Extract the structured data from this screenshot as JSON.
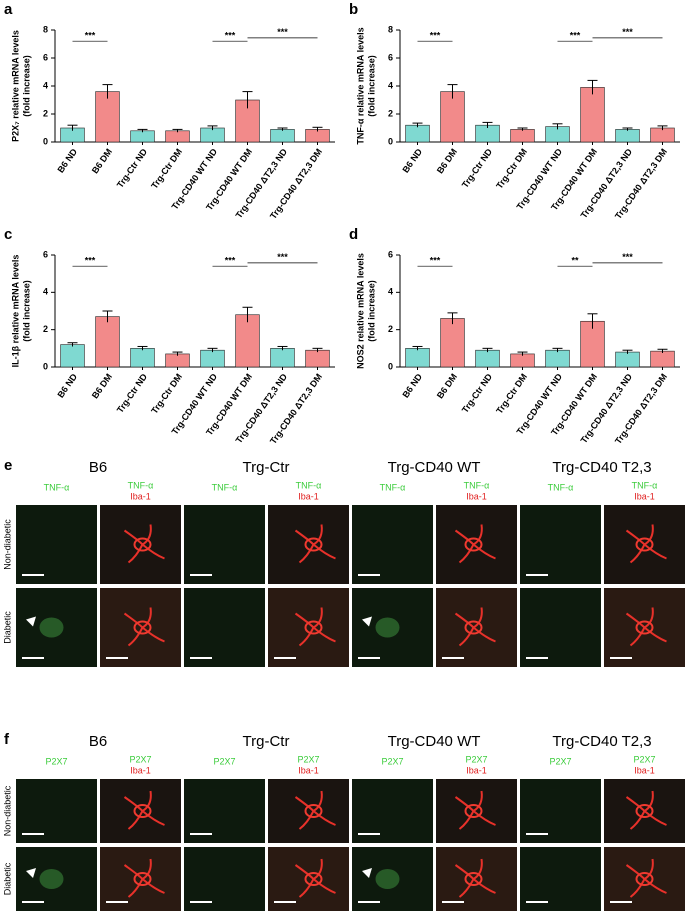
{
  "chart_data": [
    {
      "type": "bar",
      "panel": "a",
      "ylabel": [
        "P2X₇ relative mRNA levels",
        "(fold increase)"
      ],
      "categories": [
        "B6 ND",
        "B6 DM",
        "Trg-Ctr ND",
        "Trg-Ctr DM",
        "Trg-CD40 WT ND",
        "Trg-CD40 WT DM",
        "Trg-CD40 ΔT2,3 ND",
        "Trg-CD40 ΔT2,3 DM"
      ],
      "values": [
        1.0,
        3.6,
        0.8,
        0.8,
        1.0,
        3.0,
        0.9,
        0.9
      ],
      "errors": [
        0.2,
        0.5,
        0.1,
        0.1,
        0.15,
        0.6,
        0.1,
        0.15
      ],
      "colors": [
        "#7fd9d1",
        "#f28a8a",
        "#7fd9d1",
        "#f28a8a",
        "#7fd9d1",
        "#f28a8a",
        "#7fd9d1",
        "#f28a8a"
      ],
      "ylim": [
        0,
        8
      ],
      "yticks": [
        0,
        2,
        4,
        6,
        8
      ],
      "annotations": [
        {
          "from": 0,
          "to": 1,
          "text": "***"
        },
        {
          "from": 4,
          "to": 5,
          "text": "***"
        },
        {
          "from": 5,
          "to": 7,
          "text": "***"
        }
      ]
    },
    {
      "type": "bar",
      "panel": "b",
      "ylabel": [
        "TNF-α relative mRNA levels",
        "(fold increase)"
      ],
      "categories": [
        "B6 ND",
        "B6 DM",
        "Trg-Ctr ND",
        "Trg-Ctr DM",
        "Trg-CD40 WT ND",
        "Trg-CD40 WT DM",
        "Trg-CD40 ΔT2,3 ND",
        "Trg-CD40 ΔT2,3 DM"
      ],
      "values": [
        1.2,
        3.6,
        1.2,
        0.9,
        1.1,
        3.9,
        0.9,
        1.0
      ],
      "errors": [
        0.15,
        0.5,
        0.2,
        0.1,
        0.2,
        0.5,
        0.1,
        0.15
      ],
      "colors": [
        "#7fd9d1",
        "#f28a8a",
        "#7fd9d1",
        "#f28a8a",
        "#7fd9d1",
        "#f28a8a",
        "#7fd9d1",
        "#f28a8a"
      ],
      "ylim": [
        0,
        8
      ],
      "yticks": [
        0,
        2,
        4,
        6,
        8
      ],
      "annotations": [
        {
          "from": 0,
          "to": 1,
          "text": "***"
        },
        {
          "from": 4,
          "to": 5,
          "text": "***"
        },
        {
          "from": 5,
          "to": 7,
          "text": "***"
        }
      ]
    },
    {
      "type": "bar",
      "panel": "c",
      "ylabel": [
        "IL-1β relative mRNA levels",
        "(fold increase)"
      ],
      "categories": [
        "B6 ND",
        "B6 DM",
        "Trg-Ctr ND",
        "Trg-Ctr DM",
        "Trg-CD40 WT ND",
        "Trg-CD40 WT DM",
        "Trg-CD40 ΔT2,3 ND",
        "Trg-CD40 ΔT2,3 DM"
      ],
      "values": [
        1.2,
        2.7,
        1.0,
        0.7,
        0.9,
        2.8,
        1.0,
        0.9
      ],
      "errors": [
        0.1,
        0.3,
        0.1,
        0.1,
        0.1,
        0.4,
        0.1,
        0.1
      ],
      "colors": [
        "#7fd9d1",
        "#f28a8a",
        "#7fd9d1",
        "#f28a8a",
        "#7fd9d1",
        "#f28a8a",
        "#7fd9d1",
        "#f28a8a"
      ],
      "ylim": [
        0,
        6
      ],
      "yticks": [
        0,
        2,
        4,
        6
      ],
      "annotations": [
        {
          "from": 0,
          "to": 1,
          "text": "***"
        },
        {
          "from": 4,
          "to": 5,
          "text": "***"
        },
        {
          "from": 5,
          "to": 7,
          "text": "***"
        }
      ]
    },
    {
      "type": "bar",
      "panel": "d",
      "ylabel": [
        "NOS2 relative mRNA levels",
        "(fold increase)"
      ],
      "categories": [
        "B6 ND",
        "B6 DM",
        "Trg-Ctr ND",
        "Trg-Ctr DM",
        "Trg-CD40 WT ND",
        "Trg-CD40 WT DM",
        "Trg-CD40 ΔT2,3 ND",
        "Trg-CD40 ΔT2,3 DM"
      ],
      "values": [
        1.0,
        2.6,
        0.9,
        0.7,
        0.9,
        2.45,
        0.8,
        0.85
      ],
      "errors": [
        0.1,
        0.3,
        0.1,
        0.1,
        0.1,
        0.4,
        0.1,
        0.1
      ],
      "colors": [
        "#7fd9d1",
        "#f28a8a",
        "#7fd9d1",
        "#f28a8a",
        "#7fd9d1",
        "#f28a8a",
        "#7fd9d1",
        "#f28a8a"
      ],
      "ylim": [
        0,
        6
      ],
      "yticks": [
        0,
        2,
        4,
        6
      ],
      "annotations": [
        {
          "from": 0,
          "to": 1,
          "text": "***"
        },
        {
          "from": 4,
          "to": 5,
          "text": "**"
        },
        {
          "from": 5,
          "to": 7,
          "text": "***"
        }
      ]
    }
  ],
  "image_panels": [
    {
      "panel": "e",
      "groups": [
        "B6",
        "Trg-Ctr",
        "Trg-CD40 WT",
        "Trg-CD40 T2,3"
      ],
      "marker": "TNF-α",
      "merge_marker": "Iba-1",
      "rows": [
        "Non-diabetic",
        "Diabetic"
      ]
    },
    {
      "panel": "f",
      "groups": [
        "B6",
        "Trg-Ctr",
        "Trg-CD40 WT",
        "Trg-CD40 T2,3"
      ],
      "marker": "P2X7",
      "merge_marker": "Iba-1",
      "rows": [
        "Non-diabetic",
        "Diabetic"
      ]
    }
  ]
}
